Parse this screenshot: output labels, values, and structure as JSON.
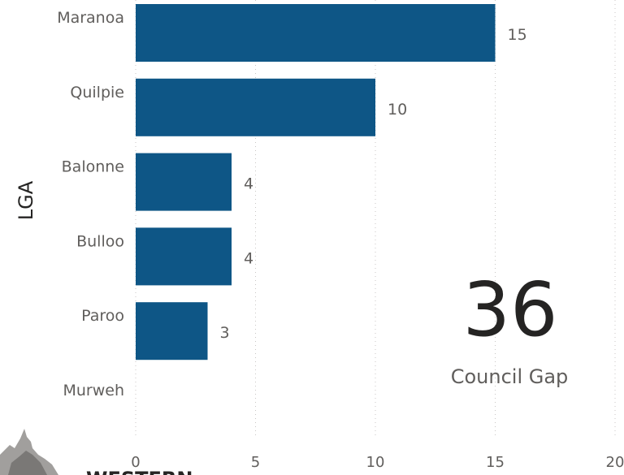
{
  "chart_data": {
    "type": "bar",
    "orientation": "horizontal",
    "categories": [
      "Maranoa",
      "Quilpie",
      "Balonne",
      "Bulloo",
      "Paroo",
      "Murweh"
    ],
    "values": [
      15,
      10,
      4,
      4,
      3,
      0
    ],
    "data_labels": [
      "15",
      "10",
      "4",
      "4",
      "3",
      ""
    ],
    "ylabel": "LGA",
    "xlabel": "",
    "xlim": [
      0,
      20
    ],
    "x_ticks": [
      "0",
      "5",
      "10",
      "15",
      "20"
    ],
    "grid": "vertical dotted",
    "legend": "none",
    "colors": {
      "bar": "#0e5686",
      "grid": "#c8c6c4",
      "text": "#605e5c"
    }
  },
  "kpi": {
    "value": "36",
    "label": "Council Gap"
  },
  "logo": {
    "text": "WESTERN"
  }
}
